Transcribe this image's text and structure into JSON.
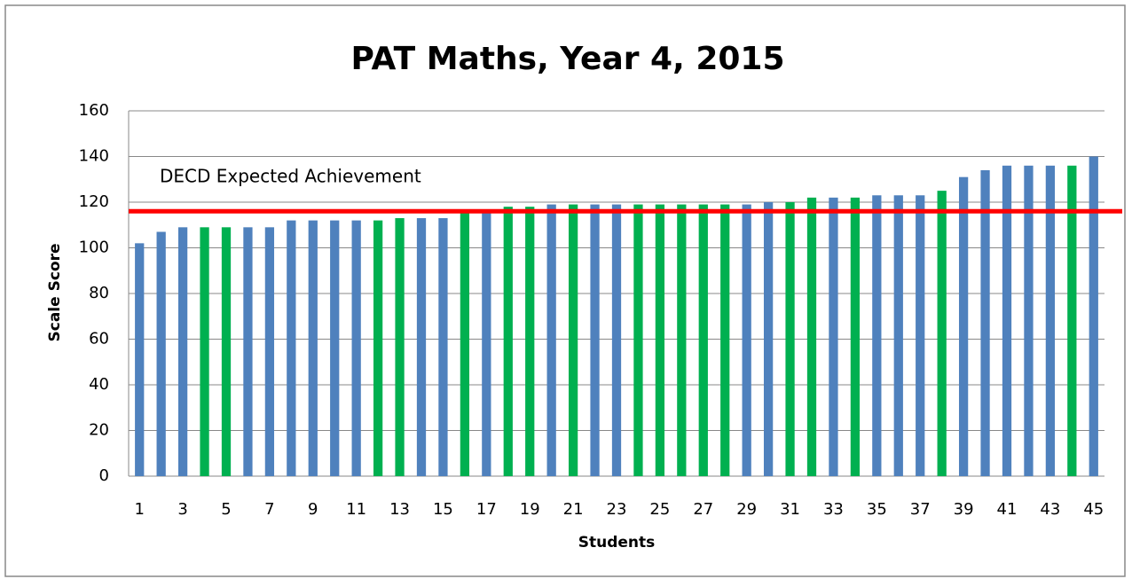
{
  "chart_data": {
    "type": "bar",
    "title": "PAT Maths, Year 4, 2015",
    "x_label": "Students",
    "y_label": "Scale Score",
    "categories": [
      1,
      null,
      3,
      null,
      5,
      null,
      7,
      null,
      9,
      null,
      11,
      null,
      13,
      null,
      15,
      null,
      17,
      null,
      19,
      null,
      21,
      null,
      23,
      null,
      25,
      null,
      27,
      null,
      29,
      null,
      31,
      null,
      33,
      null,
      35,
      null,
      37,
      null,
      39,
      null,
      41,
      null,
      43,
      null,
      45
    ],
    "values": [
      102,
      107,
      109,
      109,
      109,
      109,
      109,
      112,
      112,
      112,
      112,
      112,
      113,
      113,
      113,
      116,
      116,
      118,
      118,
      119,
      119,
      119,
      119,
      119,
      119,
      119,
      119,
      119,
      119,
      120,
      120,
      122,
      122,
      122,
      123,
      123,
      123,
      125,
      131,
      134,
      136,
      136,
      136,
      136,
      140
    ],
    "colors": [
      "#4f81bd",
      "#4f81bd",
      "#4f81bd",
      "#00b050",
      "#00b050",
      "#4f81bd",
      "#4f81bd",
      "#4f81bd",
      "#4f81bd",
      "#4f81bd",
      "#4f81bd",
      "#00b050",
      "#00b050",
      "#4f81bd",
      "#4f81bd",
      "#00b050",
      "#4f81bd",
      "#00b050",
      "#00b050",
      "#4f81bd",
      "#00b050",
      "#4f81bd",
      "#4f81bd",
      "#00b050",
      "#00b050",
      "#00b050",
      "#00b050",
      "#00b050",
      "#4f81bd",
      "#4f81bd",
      "#00b050",
      "#00b050",
      "#4f81bd",
      "#00b050",
      "#4f81bd",
      "#4f81bd",
      "#4f81bd",
      "#00b050",
      "#4f81bd",
      "#4f81bd",
      "#4f81bd",
      "#4f81bd",
      "#4f81bd",
      "#00b050",
      "#4f81bd"
    ],
    "reference_line": {
      "value": 116,
      "label": "DECD Expected Achievement",
      "color": "#ff0000"
    },
    "ylim": [
      0,
      160
    ],
    "yticks": [
      0,
      20,
      40,
      60,
      80,
      100,
      120,
      140,
      160
    ],
    "grid": true
  }
}
